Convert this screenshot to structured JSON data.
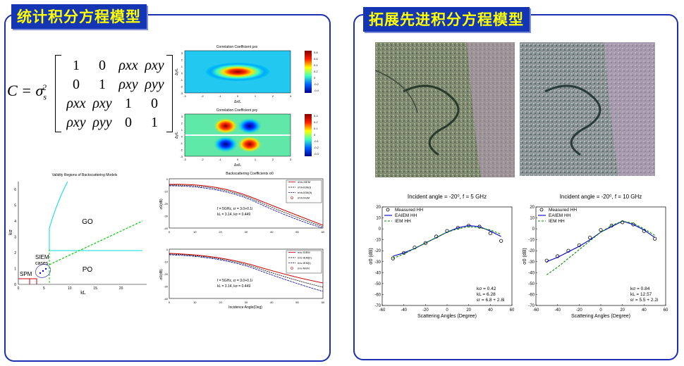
{
  "titles": {
    "left": "统计积分方程模型",
    "right": "拓展先进积分方程模型"
  },
  "equation": {
    "lhs": "C = σ",
    "sub": "s",
    "sup": "2",
    "matrix": [
      [
        "1",
        "0",
        "ρxx",
        "ρxy"
      ],
      [
        "0",
        "1",
        "ρxy",
        "ρyy"
      ],
      [
        "ρxx",
        "ρxy",
        "1",
        "0"
      ],
      [
        "ρxy",
        "ρyy",
        "0",
        "1"
      ]
    ]
  },
  "corr1": {
    "title": "Correlation Coefficient ρxx",
    "xlabel": "Δx/L",
    "ylabel": "Δy/L",
    "ticks_x": [
      "-3",
      "-2",
      "-1",
      "0",
      "1",
      "2",
      "3"
    ],
    "ticks_y": [
      "-3",
      "-2",
      "-1",
      "0",
      "1",
      "2",
      "3"
    ],
    "cbar": [
      "0.8",
      "0.6",
      "0.4",
      "0.2",
      "0",
      "-0.2",
      "-0.4"
    ]
  },
  "corr2": {
    "title": "Correlation Coefficient ρxy",
    "xlabel": "Δx/L",
    "ylabel": "Δy/L",
    "ticks_x": [
      "-3",
      "-2",
      "-1",
      "0",
      "1",
      "2",
      "3"
    ],
    "ticks_y": [
      "-3",
      "-2",
      "-1",
      "0",
      "1",
      "2",
      "3"
    ],
    "cbar": [
      "0.3",
      "0.2",
      "0.1",
      "0",
      "-0.1",
      "-0.2",
      "-0.3"
    ]
  },
  "validity": {
    "title": "Validity Regions of Backscattering Models",
    "xlabel": "kL",
    "ylabel": "kσ",
    "xticks": [
      "0",
      "5",
      "10",
      "15",
      "20"
    ],
    "yticks": [
      "0",
      "1",
      "2",
      "3",
      "4",
      "5",
      "6"
    ],
    "labels": {
      "go": "GO",
      "po": "PO",
      "spm": "SPM",
      "siem": "SIEM",
      "cases": "cases"
    },
    "xlim": [
      0,
      25
    ],
    "ylim": [
      0,
      6.5
    ]
  },
  "bs1": {
    "title": "Backscattering Coefficients σ0",
    "ylabel": "σ0(dB)",
    "xticks": [
      "0",
      "10",
      "20",
      "30",
      "40",
      "50",
      "60"
    ],
    "yticks": [
      "0",
      "-10",
      "-20",
      "-30",
      "-40"
    ],
    "legend": [
      "σhh-SIEM",
      "σhh-IEM(I)",
      "σhh-IEM(II)",
      "σhh-MoM"
    ],
    "params1": "f = 5GHz, εr = 3.0+0.1i",
    "params2": "kL = 3.14,  kσ = 0.449"
  },
  "bs2": {
    "xlabel": "Incidence Angle(Deg)",
    "ylabel": "σ0(dB)",
    "xticks": [
      "0",
      "10",
      "20",
      "30",
      "40",
      "50",
      "60"
    ],
    "yticks": [
      "0",
      "-10",
      "-20",
      "-30",
      "-40"
    ],
    "legend": [
      "σvv-SIEM",
      "σvv-IEM(II)",
      "σvv-IEM(I)",
      "σvv-MoM"
    ],
    "params1": "f = 5GHz, εr = 3.0+0.1i",
    "params2": "kL = 3.14,  kσ = 0.449"
  },
  "chart_data": [
    {
      "type": "line",
      "title": "Incident angle = -20⁰, f = 5 GHz",
      "xlabel": "Scattering Angles (Degree)",
      "ylabel": "σ0 (dB)",
      "xlim": [
        -60,
        60
      ],
      "ylim": [
        -70,
        20
      ],
      "xticks": [
        "-60",
        "-40",
        "-20",
        "0",
        "20",
        "40",
        "60"
      ],
      "yticks": [
        "20",
        "10",
        "0",
        "-10",
        "-20",
        "-30",
        "-40",
        "-50",
        "-60",
        "-70"
      ],
      "series": [
        {
          "name": "Measured HH",
          "marker": "circle",
          "x": [
            -50,
            -40,
            -30,
            -20,
            -10,
            0,
            10,
            20,
            30,
            40,
            50
          ],
          "y": [
            -27,
            -22,
            -17,
            -13,
            -7,
            -2,
            1,
            3,
            2,
            -4,
            -11
          ]
        },
        {
          "name": "EAIEM HH",
          "color": "#0000cc",
          "x": [
            -50,
            -40,
            -30,
            -20,
            -10,
            0,
            10,
            20,
            30,
            40,
            50
          ],
          "y": [
            -25,
            -22,
            -18,
            -13,
            -8,
            -3,
            1,
            3,
            2,
            -2,
            -7
          ]
        },
        {
          "name": "IEM HH",
          "color": "#008800",
          "dashed": true,
          "x": [
            -50,
            -40,
            -30,
            -20,
            -10,
            0,
            10,
            20,
            30,
            40,
            50
          ],
          "y": [
            -27,
            -23,
            -18,
            -13,
            -8,
            -3,
            0,
            2,
            1,
            -1,
            -5
          ]
        }
      ],
      "annotation": [
        "kσ = 0.42",
        "kL = 6.28",
        "εr = 6.8 + 2.8i"
      ]
    },
    {
      "type": "line",
      "title": "Incident angle = -20⁰, f = 10 GHz",
      "xlabel": "Scattering Angles (Degree)",
      "ylabel": "σ0 (dB)",
      "xlim": [
        -60,
        60
      ],
      "ylim": [
        -70,
        20
      ],
      "xticks": [
        "-60",
        "-40",
        "-20",
        "0",
        "20",
        "40",
        "60"
      ],
      "yticks": [
        "20",
        "10",
        "0",
        "-10",
        "-20",
        "-30",
        "-40",
        "-50",
        "-60",
        "-70"
      ],
      "series": [
        {
          "name": "Measured HH",
          "marker": "circle",
          "x": [
            -50,
            -40,
            -30,
            -20,
            -10,
            0,
            10,
            20,
            30,
            40,
            50
          ],
          "y": [
            -29,
            -25,
            -20,
            -15,
            -8,
            -1,
            3,
            6,
            4,
            -2,
            -9
          ]
        },
        {
          "name": "EAIEM HH",
          "color": "#0000cc",
          "x": [
            -50,
            -40,
            -30,
            -20,
            -10,
            0,
            10,
            20,
            30,
            40,
            50
          ],
          "y": [
            -30,
            -26,
            -21,
            -16,
            -10,
            -3,
            2,
            7,
            4,
            -1,
            -8
          ]
        },
        {
          "name": "IEM HH",
          "color": "#008800",
          "dashed": true,
          "x": [
            -50,
            -40,
            -30,
            -20,
            -10,
            0,
            10,
            20,
            30,
            40,
            50
          ],
          "y": [
            -42,
            -35,
            -27,
            -19,
            -11,
            -3,
            3,
            7,
            5,
            0,
            -6
          ]
        }
      ],
      "annotation": [
        "kσ = 0.84",
        "kL = 12.57",
        "εr = 5.5 + 2.2i"
      ]
    }
  ]
}
